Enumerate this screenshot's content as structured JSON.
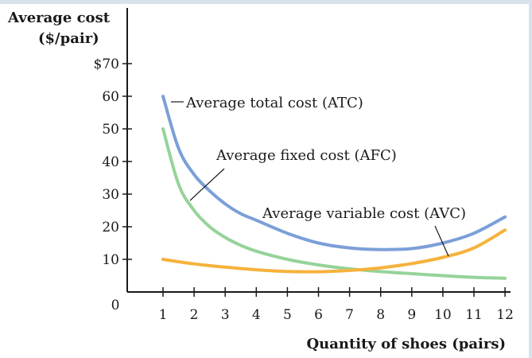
{
  "chart_data": {
    "type": "line",
    "ylabel_line1": "Average cost",
    "ylabel_line2": "($/pair)",
    "xlabel": "Quantity of shoes (pairs)",
    "x_ticks": [
      "1",
      "2",
      "3",
      "4",
      "5",
      "6",
      "7",
      "8",
      "9",
      "10",
      "11",
      "12"
    ],
    "y_ticks": [
      "$70",
      "60",
      "50",
      "40",
      "30",
      "20",
      "10"
    ],
    "origin_label": "0",
    "xlim": [
      0,
      12
    ],
    "ylim": [
      0,
      70
    ],
    "grid": false,
    "series": [
      {
        "name": "Average total cost (ATC)",
        "color": "#7b9fd8",
        "x": [
          1,
          1.5,
          2,
          2.5,
          3,
          3.5,
          4,
          5,
          6,
          7,
          8,
          9,
          10,
          11,
          12
        ],
        "y": [
          60,
          44,
          36,
          31,
          27,
          24,
          22,
          18,
          15,
          13.5,
          13,
          13.3,
          15,
          18,
          23
        ]
      },
      {
        "name": "Average fixed cost (AFC)",
        "color": "#96d39a",
        "x": [
          1,
          1.5,
          2,
          2.5,
          3,
          3.5,
          4,
          5,
          6,
          7,
          8,
          9,
          10,
          11,
          12
        ],
        "y": [
          50,
          33,
          25,
          20,
          16.7,
          14.3,
          12.5,
          10,
          8.3,
          7.1,
          6.25,
          5.6,
          5,
          4.5,
          4.2
        ]
      },
      {
        "name": "Average variable cost (AVC)",
        "color": "#f6b23c",
        "x": [
          1,
          2,
          3,
          4,
          5,
          6,
          7,
          8,
          9,
          10,
          11,
          12
        ],
        "y": [
          10,
          8.6,
          7.6,
          6.8,
          6.3,
          6.2,
          6.6,
          7.4,
          8.7,
          10.6,
          13.5,
          19
        ]
      }
    ]
  }
}
